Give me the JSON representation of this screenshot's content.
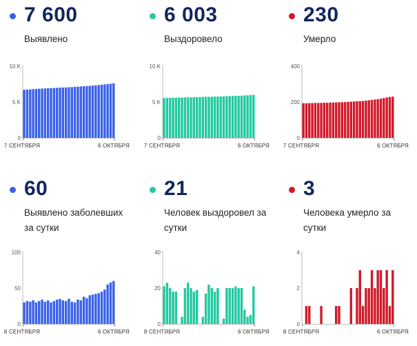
{
  "colors": {
    "cases": "#3a62e8",
    "recovered": "#23c9a0",
    "deaths": "#d11a2a",
    "navy": "#12265e"
  },
  "chart_data": [
    {
      "type": "bar",
      "number": "7 600",
      "label": "Выявлено",
      "color_key": "cases",
      "ylim": [
        0,
        10000
      ],
      "yticks": [
        {
          "v": 10000,
          "t": "10 K"
        },
        {
          "v": 5000,
          "t": "5 K"
        },
        {
          "v": 0,
          "t": "0"
        }
      ],
      "x_start": "7 СЕНТЯБРЯ",
      "x_end": "6 ОКТЯБРЯ",
      "values": [
        6700,
        6730,
        6760,
        6790,
        6820,
        6850,
        6880,
        6900,
        6920,
        6940,
        6960,
        6980,
        7000,
        7020,
        7040,
        7060,
        7080,
        7110,
        7140,
        7170,
        7200,
        7230,
        7260,
        7290,
        7330,
        7370,
        7410,
        7460,
        7510,
        7550,
        7600
      ]
    },
    {
      "type": "bar",
      "number": "6 003",
      "label": "Выздоровело",
      "color_key": "recovered",
      "ylim": [
        0,
        10000
      ],
      "yticks": [
        {
          "v": 10000,
          "t": "10 K"
        },
        {
          "v": 5000,
          "t": "5 K"
        },
        {
          "v": 0,
          "t": "0"
        }
      ],
      "x_start": "7 СЕНТЯБРЯ",
      "x_end": "6 ОКТЯБРЯ",
      "values": [
        5550,
        5560,
        5580,
        5590,
        5600,
        5610,
        5620,
        5640,
        5650,
        5660,
        5670,
        5680,
        5700,
        5710,
        5720,
        5730,
        5740,
        5760,
        5770,
        5780,
        5800,
        5810,
        5830,
        5840,
        5860,
        5880,
        5900,
        5920,
        5940,
        5970,
        6003
      ]
    },
    {
      "type": "bar",
      "number": "230",
      "label": "Умерло",
      "color_key": "deaths",
      "ylim": [
        0,
        400
      ],
      "yticks": [
        {
          "v": 400,
          "t": "400"
        },
        {
          "v": 200,
          "t": "200"
        },
        {
          "v": 0,
          "t": "0"
        }
      ],
      "x_start": "7 СЕНТЯБРЯ",
      "x_end": "6 ОКТЯБРЯ",
      "values": [
        193,
        193,
        194,
        194,
        195,
        195,
        195,
        196,
        196,
        197,
        197,
        198,
        199,
        199,
        200,
        201,
        202,
        203,
        204,
        205,
        206,
        208,
        210,
        212,
        214,
        216,
        219,
        222,
        225,
        228,
        230
      ]
    },
    {
      "type": "bar",
      "number": "60",
      "label": "Выявлено заболевших за сутки",
      "color_key": "cases",
      "ylim": [
        0,
        100
      ],
      "yticks": [
        {
          "v": 100,
          "t": "100"
        },
        {
          "v": 50,
          "t": "50"
        },
        {
          "v": 0,
          "t": "0"
        }
      ],
      "x_start": "8 СЕНТЯБРЯ",
      "x_end": "6 ОКТЯБРЯ",
      "values": [
        30,
        32,
        31,
        33,
        30,
        32,
        34,
        31,
        33,
        30,
        32,
        34,
        35,
        33,
        32,
        35,
        31,
        30,
        34,
        33,
        38,
        36,
        40,
        41,
        42,
        43,
        45,
        48,
        55,
        58,
        60
      ]
    },
    {
      "type": "bar",
      "number": "21",
      "label": "Человек выздоровел за сутки",
      "color_key": "recovered",
      "ylim": [
        0,
        40
      ],
      "yticks": [
        {
          "v": 40,
          "t": "40"
        },
        {
          "v": 20,
          "t": "20"
        },
        {
          "v": 0,
          "t": "0"
        }
      ],
      "x_start": "8 СЕНТЯБРЯ",
      "x_end": "6 ОКТЯБРЯ",
      "values": [
        21,
        23,
        20,
        18,
        18,
        0,
        4,
        20,
        23,
        20,
        18,
        19,
        0,
        4,
        17,
        22,
        20,
        18,
        20,
        0,
        3,
        20,
        20,
        20,
        21,
        20,
        20,
        8,
        4,
        5,
        21
      ]
    },
    {
      "type": "bar",
      "number": "3",
      "label": "Человека умерло за сутки",
      "color_key": "deaths",
      "ylim": [
        0,
        4
      ],
      "yticks": [
        {
          "v": 4,
          "t": "4"
        },
        {
          "v": 2,
          "t": "2"
        },
        {
          "v": 0,
          "t": "0"
        }
      ],
      "x_start": "8 СЕНТЯБРЯ",
      "x_end": "6 ОКТЯБРЯ",
      "values": [
        0,
        1,
        1,
        0,
        0,
        0,
        1,
        0,
        0,
        0,
        0,
        1,
        1,
        0,
        0,
        0,
        2,
        0,
        2,
        3,
        1,
        2,
        2,
        3,
        2,
        3,
        3,
        2,
        3,
        1,
        3
      ]
    }
  ]
}
